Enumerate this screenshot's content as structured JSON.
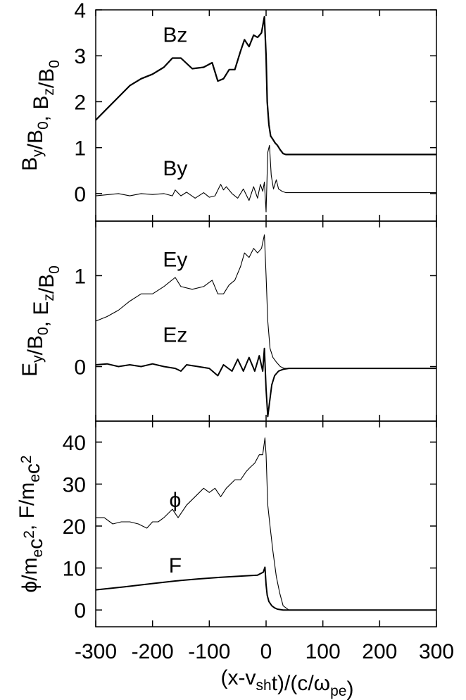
{
  "chart_data": [
    {
      "type": "line",
      "ylabel_parts": [
        [
          "B",
          "y",
          ""
        ],
        [
          "/B",
          "0",
          ""
        ],
        [
          ", B",
          "z",
          ""
        ],
        [
          "/B",
          "0",
          ""
        ]
      ],
      "xlim": [
        -300,
        300
      ],
      "ylim": [
        -0.6,
        4.0
      ],
      "yticks": [
        0,
        1,
        2,
        3,
        4
      ],
      "grid": false,
      "series": [
        {
          "name": "Bz",
          "stroke_width": 2.2,
          "x": [
            -300,
            -280,
            -260,
            -240,
            -220,
            -200,
            -180,
            -165,
            -150,
            -130,
            -110,
            -95,
            -85,
            -75,
            -65,
            -55,
            -45,
            -38,
            -30,
            -22,
            -15,
            -8,
            -3,
            0,
            2,
            5,
            8,
            12,
            16,
            20,
            25,
            30,
            35,
            300
          ],
          "y": [
            1.6,
            1.85,
            2.1,
            2.35,
            2.5,
            2.6,
            2.75,
            2.95,
            2.95,
            2.72,
            2.75,
            2.85,
            2.45,
            2.5,
            2.7,
            2.7,
            3.1,
            3.35,
            3.2,
            3.45,
            3.4,
            3.5,
            3.85,
            3.0,
            2.0,
            1.5,
            1.25,
            1.18,
            1.1,
            1.05,
            0.95,
            0.87,
            0.85,
            0.85
          ]
        },
        {
          "name": "By",
          "stroke_width": 1.1,
          "x": [
            -300,
            -260,
            -240,
            -220,
            -200,
            -180,
            -165,
            -160,
            -150,
            -140,
            -125,
            -110,
            -100,
            -90,
            -80,
            -75,
            -70,
            -60,
            -50,
            -40,
            -30,
            -22,
            -15,
            -10,
            -6,
            -3,
            0,
            3,
            6,
            9,
            13,
            18,
            22,
            28,
            35,
            300
          ],
          "y": [
            -0.05,
            0.0,
            -0.05,
            0.0,
            -0.02,
            0.0,
            -0.05,
            0.08,
            -0.05,
            0.03,
            -0.1,
            0.02,
            -0.08,
            -0.05,
            0.2,
            0.08,
            0.15,
            0.0,
            -0.1,
            0.1,
            -0.15,
            0.15,
            -0.1,
            0.2,
            0.05,
            0.25,
            -0.4,
            0.9,
            1.05,
            0.4,
            0.1,
            0.3,
            0.1,
            0.05,
            0.02,
            0.02
          ]
        }
      ],
      "annotations": [
        {
          "text": "Bz",
          "x": -160,
          "y": 3.3
        },
        {
          "text": "By",
          "x": -160,
          "y": 0.4
        }
      ]
    },
    {
      "type": "line",
      "ylabel_parts": [
        [
          "E",
          "y",
          ""
        ],
        [
          "/B",
          "0",
          ""
        ],
        [
          ",  E",
          "z",
          ""
        ],
        [
          "/B",
          "0",
          ""
        ]
      ],
      "xlim": [
        -300,
        300
      ],
      "ylim": [
        -0.6,
        1.6
      ],
      "yticks": [
        0,
        1
      ],
      "grid": false,
      "series": [
        {
          "name": "Ey",
          "stroke_width": 1.1,
          "x": [
            -300,
            -280,
            -260,
            -240,
            -220,
            -200,
            -180,
            -160,
            -150,
            -130,
            -110,
            -95,
            -85,
            -75,
            -65,
            -55,
            -45,
            -38,
            -30,
            -22,
            -15,
            -8,
            -3,
            0,
            3,
            7,
            12,
            18,
            25,
            32,
            40,
            300
          ],
          "y": [
            0.5,
            0.55,
            0.62,
            0.72,
            0.8,
            0.8,
            0.88,
            0.98,
            0.88,
            0.85,
            0.88,
            0.95,
            0.8,
            0.8,
            0.9,
            0.95,
            1.1,
            1.25,
            1.2,
            1.3,
            1.25,
            1.3,
            1.45,
            1.0,
            0.5,
            0.2,
            0.1,
            0.05,
            0.0,
            -0.02,
            -0.02,
            -0.02
          ]
        },
        {
          "name": "Ez",
          "stroke_width": 2.0,
          "x": [
            -300,
            -280,
            -260,
            -240,
            -220,
            -200,
            -180,
            -160,
            -150,
            -140,
            -120,
            -100,
            -85,
            -75,
            -60,
            -50,
            -40,
            -30,
            -20,
            -12,
            -6,
            -3,
            0,
            3,
            6,
            10,
            15,
            22,
            30,
            40,
            300
          ],
          "y": [
            0.02,
            0.03,
            0.0,
            0.02,
            0.0,
            0.03,
            0.0,
            -0.02,
            -0.05,
            0.02,
            0.0,
            -0.02,
            -0.1,
            0.02,
            -0.05,
            0.08,
            -0.05,
            0.1,
            -0.05,
            0.12,
            -0.05,
            0.2,
            -0.25,
            -0.55,
            -0.4,
            -0.2,
            -0.1,
            -0.05,
            -0.03,
            -0.02,
            -0.02
          ]
        }
      ],
      "annotations": [
        {
          "text": "Ey",
          "x": -160,
          "y": 1.1
        },
        {
          "text": "Ez",
          "x": -160,
          "y": 0.27
        }
      ]
    },
    {
      "type": "line",
      "ylabel_parts": [
        [
          "ϕ/m",
          "e",
          ""
        ],
        [
          "c",
          "",
          "2"
        ],
        [
          ", F/m",
          "e",
          ""
        ],
        [
          "c",
          "",
          "2"
        ]
      ],
      "xlim": [
        -300,
        300
      ],
      "ylim": [
        -4,
        45
      ],
      "yticks": [
        0,
        10,
        20,
        30,
        40
      ],
      "grid": false,
      "series": [
        {
          "name": "ϕ",
          "stroke_width": 1.1,
          "x": [
            -300,
            -285,
            -270,
            -255,
            -240,
            -225,
            -210,
            -200,
            -190,
            -180,
            -165,
            -155,
            -140,
            -125,
            -110,
            -100,
            -90,
            -80,
            -70,
            -55,
            -45,
            -35,
            -28,
            -20,
            -12,
            -6,
            -2,
            0,
            3,
            7,
            12,
            18,
            24,
            30,
            40,
            300
          ],
          "y": [
            22,
            22,
            20.5,
            21,
            21,
            20.5,
            19.5,
            21,
            21,
            22,
            24,
            22,
            25,
            27,
            29,
            28,
            29,
            27,
            29,
            31,
            31,
            33,
            34,
            35,
            37,
            37,
            41,
            37,
            25,
            20,
            14,
            8,
            4,
            1,
            0,
            0
          ]
        },
        {
          "name": "F",
          "stroke_width": 2.0,
          "x": [
            -300,
            -250,
            -200,
            -160,
            -120,
            -80,
            -40,
            -15,
            -5,
            -2,
            0,
            2,
            5,
            10,
            15,
            20,
            30,
            300
          ],
          "y": [
            4.8,
            5.5,
            6.3,
            6.9,
            7.4,
            7.8,
            8.1,
            8.3,
            9.0,
            10.2,
            6.0,
            3.5,
            2.0,
            1.0,
            0.5,
            0.2,
            0.0,
            0.0
          ]
        }
      ],
      "annotations": [
        {
          "text": "ϕ",
          "x": -160,
          "y": 24.5
        },
        {
          "text": "F",
          "x": -160,
          "y": 8.9
        }
      ]
    }
  ],
  "x_axis": {
    "ticks": [
      -300,
      -200,
      -100,
      0,
      100,
      200,
      300
    ],
    "xlabel_parts": [
      [
        "(x-v",
        "",
        ""
      ],
      [
        "",
        "sh",
        ""
      ],
      [
        "t)/(c/ω",
        "",
        ""
      ],
      [
        "",
        "pe",
        ""
      ],
      [
        ")",
        "",
        ""
      ]
    ]
  }
}
